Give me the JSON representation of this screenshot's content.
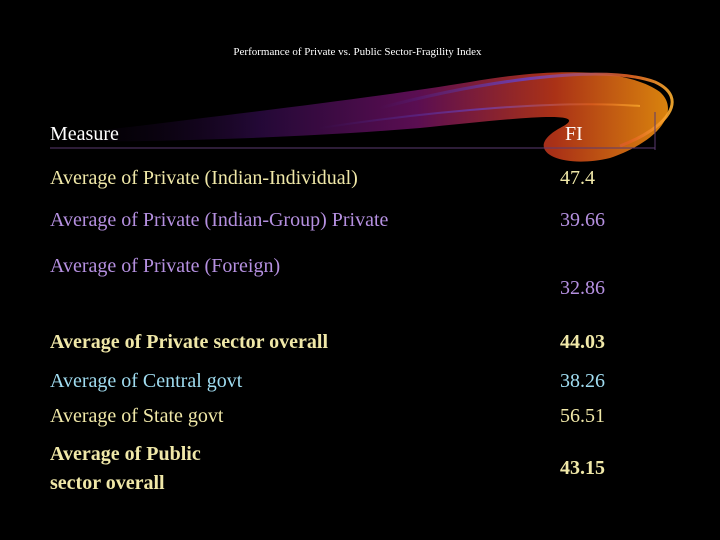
{
  "slide": {
    "title": "Performance of Private vs. Public Sector-Fragility Index",
    "header": {
      "measure": "Measure",
      "index": "FI"
    },
    "rows": [
      {
        "label": "Average of  Private (Indian-Individual)",
        "value": "47.4",
        "color": "#f0e8a8"
      },
      {
        "label": "Average of Private (Indian-Group) Private",
        "value": "39.66",
        "color": "#b590e0"
      },
      {
        "label": "Average of Private (Foreign)",
        "value": "32.86",
        "color": "#b590e0"
      },
      {
        "label": "Average of Private sector overall",
        "value": "44.03",
        "color": "#f0e8a8"
      },
      {
        "label": "Average of Central govt",
        "value": "38.26",
        "color": "#a0dcf0"
      },
      {
        "label": "Average of State govt",
        "value": "56.51",
        "color": "#f0e8a8"
      },
      {
        "label_line1": "Average of Public",
        "label_line2": "sector overall",
        "value": "43.15",
        "color": "#f0e8a8"
      }
    ],
    "colors": {
      "background": "#000000",
      "header_text": "#ffffff",
      "swoosh": "#ff8c00"
    }
  }
}
